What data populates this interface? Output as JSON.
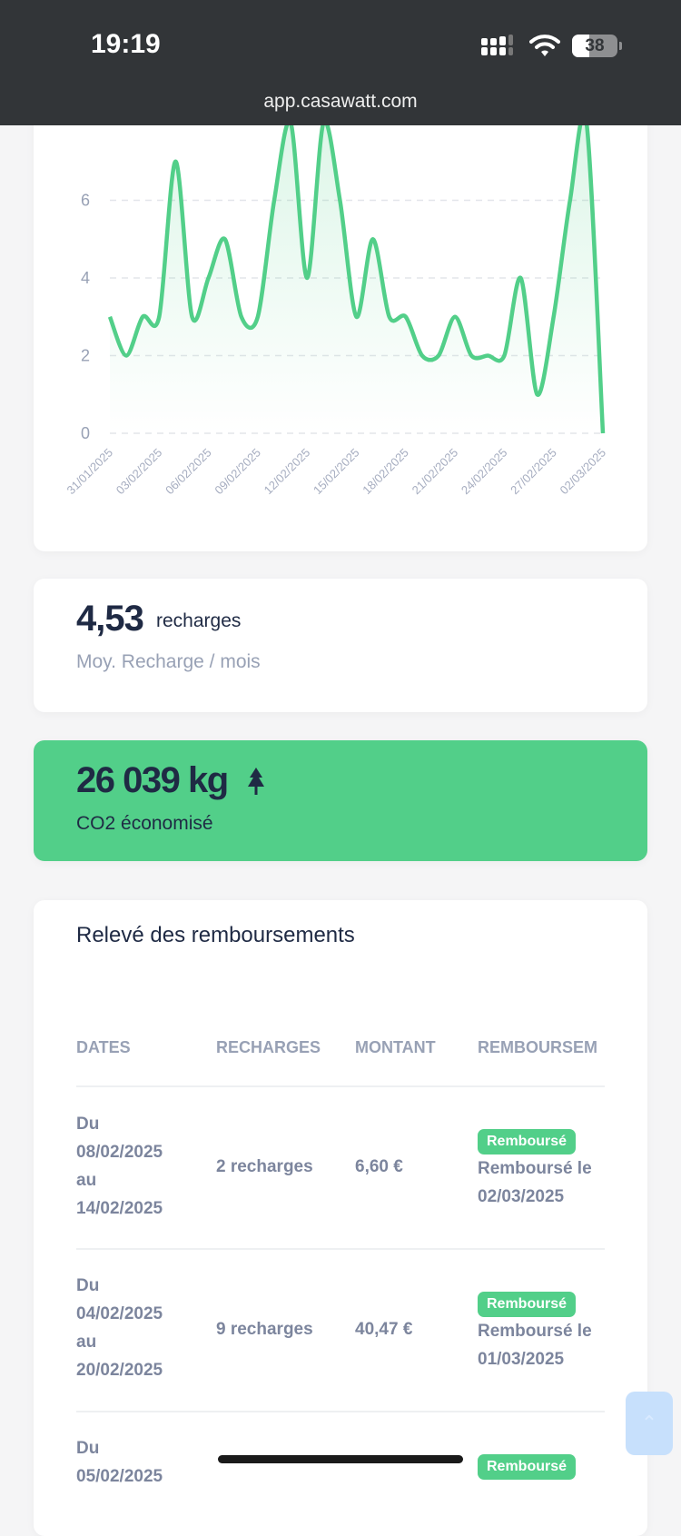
{
  "status_bar": {
    "time": "19:19",
    "battery": "38",
    "battery_level": 0.38,
    "url": "app.casawatt.com"
  },
  "chart_data": {
    "type": "area",
    "x": [
      "31/01/2025",
      "01/02/2025",
      "02/02/2025",
      "03/02/2025",
      "04/02/2025",
      "05/02/2025",
      "06/02/2025",
      "07/02/2025",
      "08/02/2025",
      "09/02/2025",
      "10/02/2025",
      "11/02/2025",
      "12/02/2025",
      "13/02/2025",
      "14/02/2025",
      "15/02/2025",
      "16/02/2025",
      "17/02/2025",
      "18/02/2025",
      "19/02/2025",
      "20/02/2025",
      "21/02/2025",
      "22/02/2025",
      "23/02/2025",
      "24/02/2025",
      "25/02/2025",
      "26/02/2025",
      "27/02/2025",
      "28/02/2025",
      "01/03/2025",
      "02/03/2025"
    ],
    "values": [
      3,
      2,
      3,
      3,
      7,
      3,
      4,
      5,
      3,
      3,
      6,
      8,
      4,
      8,
      6,
      3,
      5,
      3,
      3,
      2,
      2,
      3,
      2,
      2,
      2,
      4,
      1,
      3,
      6,
      8,
      0
    ],
    "x_tick_labels": [
      "31/01/2025",
      "03/02/2025",
      "06/02/2025",
      "09/02/2025",
      "12/02/2025",
      "15/02/2025",
      "18/02/2025",
      "21/02/2025",
      "24/02/2025",
      "27/02/2025",
      "02/03/2025"
    ],
    "y_ticks": [
      "0",
      "2",
      "4",
      "6"
    ],
    "ylim": [
      0,
      8
    ],
    "grid": "dashed horizontal",
    "color": "#52cf89"
  },
  "avg_card": {
    "value": "4,53",
    "unit": "recharges",
    "label": "Moy. Recharge / mois"
  },
  "co2_card": {
    "value": "26 039 kg",
    "icon": "tree-icon",
    "label": "CO2 économisé",
    "color": "#52cf89"
  },
  "refunds": {
    "title": "Relevé des remboursements",
    "columns": [
      "DATES",
      "RECHARGES",
      "MONTANT",
      "REMBOURSEM"
    ],
    "rows": [
      {
        "du": "Du",
        "start": "08/02/2025",
        "au": "au",
        "end": "14/02/2025",
        "recharges": "2 recharges",
        "amount": "6,60 €",
        "status": "Remboursé",
        "refund_label": "Remboursé le",
        "refund_date": "02/03/2025"
      },
      {
        "du": "Du",
        "start": "04/02/2025",
        "au": "au",
        "end": "20/02/2025",
        "recharges": "9 recharges",
        "amount": "40,47 €",
        "status": "Remboursé",
        "refund_label": "Remboursé le",
        "refund_date": "01/03/2025"
      },
      {
        "du": "Du",
        "start": "05/02/2025",
        "status": "Remboursé"
      }
    ]
  }
}
